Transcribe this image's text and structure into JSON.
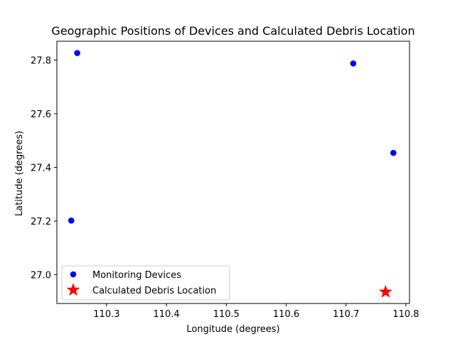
{
  "chart_data": {
    "type": "scatter",
    "title": "Geographic Positions of Devices and Calculated Debris Location",
    "xlabel": "Longitude (degrees)",
    "ylabel": "Latitude (degrees)",
    "xlim": [
      110.217,
      110.806
    ],
    "ylim": [
      26.893,
      27.87
    ],
    "x_ticks": [
      110.3,
      110.4,
      110.5,
      110.6,
      110.7,
      110.8
    ],
    "x_tick_labels": [
      "110.3",
      "110.4",
      "110.5",
      "110.6",
      "110.7",
      "110.8"
    ],
    "y_ticks": [
      27.0,
      27.2,
      27.4,
      27.6,
      27.8
    ],
    "y_tick_labels": [
      "27.0",
      "27.2",
      "27.4",
      "27.6",
      "27.8"
    ],
    "grid": false,
    "legend_position": "lower-left",
    "series": [
      {
        "name": "Monitoring Devices",
        "marker": "circle",
        "color": "#0000ff",
        "points": [
          {
            "x": 110.251,
            "y": 27.826
          },
          {
            "x": 110.712,
            "y": 27.787
          },
          {
            "x": 110.779,
            "y": 27.454
          },
          {
            "x": 110.241,
            "y": 27.202
          }
        ]
      },
      {
        "name": "Calculated Debris Location",
        "marker": "star",
        "color": "#ff0000",
        "points": [
          {
            "x": 110.766,
            "y": 26.936
          }
        ]
      }
    ]
  }
}
